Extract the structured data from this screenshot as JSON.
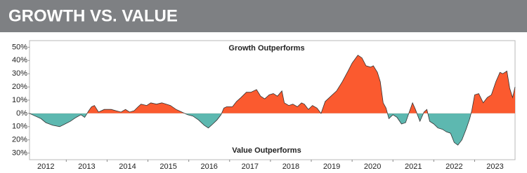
{
  "chart_data": {
    "type": "area",
    "title": "GROWTH VS. VALUE",
    "annotations": [
      "Growth Outperforms",
      "Value Outperforms"
    ],
    "color": "#fb5a2f",
    "negative_color": "#5db8b0",
    "x": [
      2012.1,
      2012.24,
      2012.38,
      2012.5,
      2012.67,
      2012.84,
      2012.97,
      2013.1,
      2013.24,
      2013.36,
      2013.45,
      2013.55,
      2013.62,
      2013.69,
      2013.79,
      2013.93,
      2014.1,
      2014.22,
      2014.34,
      2014.45,
      2014.55,
      2014.66,
      2014.76,
      2014.83,
      2014.97,
      2015.07,
      2015.21,
      2015.34,
      2015.45,
      2015.55,
      2015.69,
      2015.83,
      2015.97,
      2016.1,
      2016.24,
      2016.38,
      2016.48,
      2016.59,
      2016.69,
      2016.79,
      2016.86,
      2016.93,
      2017.07,
      2017.17,
      2017.28,
      2017.41,
      2017.52,
      2017.66,
      2017.76,
      2017.86,
      2017.97,
      2018.07,
      2018.17,
      2018.28,
      2018.34,
      2018.45,
      2018.55,
      2018.66,
      2018.76,
      2018.83,
      2018.93,
      2019.03,
      2019.14,
      2019.24,
      2019.34,
      2019.48,
      2019.62,
      2019.76,
      2019.9,
      2020.0,
      2020.14,
      2020.24,
      2020.34,
      2020.45,
      2020.52,
      2020.62,
      2020.69,
      2020.76,
      2020.83,
      2020.9,
      2021.0,
      2021.1,
      2021.21,
      2021.31,
      2021.41,
      2021.48,
      2021.55,
      2021.66,
      2021.76,
      2021.83,
      2021.9,
      2022.0,
      2022.1,
      2022.21,
      2022.31,
      2022.41,
      2022.5,
      2022.59,
      2022.69,
      2022.79,
      2022.88,
      2022.93,
      2023.0,
      2023.1,
      2023.21,
      2023.31,
      2023.41,
      2023.52,
      2023.62,
      2023.69,
      2023.79,
      2023.86,
      2023.93,
      2023.99
    ],
    "values": [
      0,
      -2,
      -4,
      -7,
      -9,
      -10,
      -8,
      -6,
      -3,
      -1,
      -3,
      2,
      5,
      6,
      1,
      3,
      3,
      2,
      1,
      3,
      1,
      2,
      5,
      7,
      6,
      8,
      7,
      8,
      7,
      6,
      3,
      1,
      -1,
      -2,
      -5,
      -9,
      -11,
      -8,
      -5,
      -1,
      4,
      5,
      5,
      9,
      12,
      16,
      16,
      18,
      13,
      11,
      14,
      15,
      13,
      17,
      8,
      6,
      7,
      5,
      8,
      7,
      3,
      6,
      4,
      0,
      9,
      13,
      17,
      24,
      32,
      38,
      44,
      42,
      36,
      35,
      36,
      31,
      24,
      8,
      4,
      -4,
      -1,
      -3,
      -8,
      -7,
      2,
      8,
      3,
      -6,
      1,
      3,
      -6,
      -8,
      -11,
      -12,
      -14,
      -15,
      -22,
      -24,
      -20,
      -12,
      -4,
      2,
      14,
      15,
      8,
      12,
      14,
      24,
      31,
      30,
      32,
      19,
      12,
      20
    ],
    "xlim": [
      2012.1,
      2023.99
    ],
    "xticks": [
      2012,
      2013,
      2014,
      2015,
      2016,
      2017,
      2018,
      2019,
      2020,
      2021,
      2022,
      2023
    ],
    "ylim": [
      -35,
      55
    ],
    "yticks": [
      {
        "value": 50,
        "label": "50%"
      },
      {
        "value": 40,
        "label": "40%"
      },
      {
        "value": 30,
        "label": "30%"
      },
      {
        "value": 20,
        "label": "20%"
      },
      {
        "value": 10,
        "label": "10%"
      },
      {
        "value": 0,
        "label": "0%"
      },
      {
        "value": -10,
        "label": "10%"
      },
      {
        "value": -20,
        "label": "20%"
      },
      {
        "value": -30,
        "label": "30%"
      }
    ]
  }
}
